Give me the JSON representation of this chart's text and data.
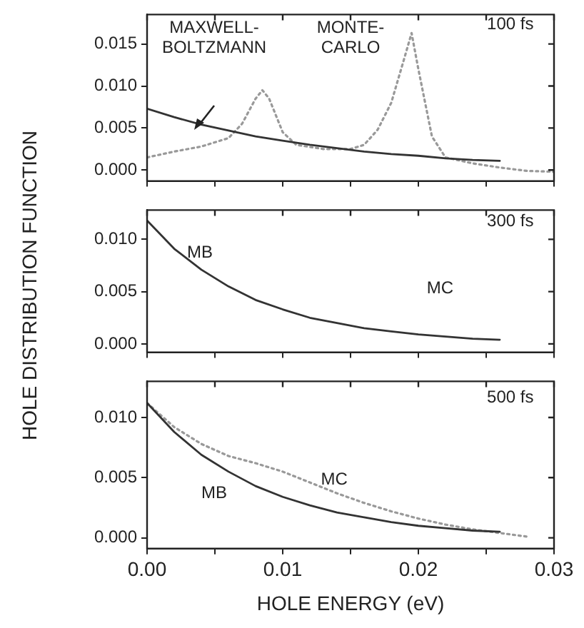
{
  "chart_data": [
    {
      "type": "line",
      "xlim": [
        0,
        0.03
      ],
      "ylim": [
        -0.0013,
        0.0185
      ],
      "tick_labels": "y",
      "grid": false,
      "marker": "none",
      "xticks": [
        {
          "value": 0,
          "label": null
        },
        {
          "value": 0.005,
          "label": null
        },
        {
          "value": 0.01,
          "label": null
        },
        {
          "value": 0.015,
          "label": null
        },
        {
          "value": 0.02,
          "label": null
        },
        {
          "value": 0.025,
          "label": null
        },
        {
          "value": 0.03,
          "label": null
        }
      ],
      "yticks": [
        {
          "value": 0,
          "label": "0.000"
        },
        {
          "value": 0.005,
          "label": "0.005"
        },
        {
          "value": 0.01,
          "label": "0.010"
        },
        {
          "value": 0.015,
          "label": "0.015"
        }
      ],
      "series": [
        {
          "color": "#333333",
          "line_style": "solid",
          "x": [
            0,
            0.002,
            0.004,
            0.006,
            0.008,
            0.01,
            0.012,
            0.014,
            0.016,
            0.018,
            0.02,
            0.022,
            0.024,
            0.026
          ],
          "values": [
            0.0073,
            0.0063,
            0.0054,
            0.0047,
            0.004,
            0.0035,
            0.003,
            0.0026,
            0.0022,
            0.0019,
            0.0017,
            0.0014,
            0.0012,
            0.0011
          ]
        },
        {
          "color": "#999999",
          "line_style": "dotted",
          "x": [
            0,
            0.002,
            0.004,
            0.006,
            0.007,
            0.008,
            0.0085,
            0.009,
            0.01,
            0.011,
            0.013,
            0.015,
            0.016,
            0.017,
            0.018,
            0.019,
            0.0195,
            0.02,
            0.021,
            0.022,
            0.024,
            0.026,
            0.028,
            0.03
          ],
          "values": [
            0.0015,
            0.0022,
            0.0028,
            0.0038,
            0.0055,
            0.0085,
            0.0095,
            0.0085,
            0.0045,
            0.003,
            0.0025,
            0.0025,
            0.003,
            0.0048,
            0.008,
            0.0135,
            0.0163,
            0.012,
            0.004,
            0.0015,
            0.0008,
            0.0003,
            -0.0001,
            -0.0002
          ]
        }
      ],
      "annotations": [
        "100 fs",
        "MAXWELL-\nBOLTZMANN",
        "MONTE-\nCARLO"
      ]
    },
    {
      "type": "line",
      "xlim": [
        0,
        0.03
      ],
      "ylim": [
        -0.0008,
        0.0128
      ],
      "tick_labels": "y",
      "grid": false,
      "marker": "none",
      "ylabel": "HOLE DISTRIBUTION FUNCTION",
      "xticks": [
        {
          "value": 0,
          "label": null
        },
        {
          "value": 0.005,
          "label": null
        },
        {
          "value": 0.01,
          "label": null
        },
        {
          "value": 0.015,
          "label": null
        },
        {
          "value": 0.02,
          "label": null
        },
        {
          "value": 0.025,
          "label": null
        },
        {
          "value": 0.03,
          "label": null
        }
      ],
      "yticks": [
        {
          "value": 0,
          "label": "0.000"
        },
        {
          "value": 0.005,
          "label": "0.005"
        },
        {
          "value": 0.01,
          "label": "0.010"
        }
      ],
      "series": [
        {
          "color": "#333333",
          "line_style": "solid",
          "x": [
            0,
            0.002,
            0.004,
            0.006,
            0.008,
            0.01,
            0.012,
            0.014,
            0.016,
            0.018,
            0.02,
            0.022,
            0.024,
            0.026
          ],
          "values": [
            0.0118,
            0.0091,
            0.0071,
            0.0055,
            0.0042,
            0.0033,
            0.0025,
            0.002,
            0.0015,
            0.0012,
            0.0009,
            0.0007,
            0.0005,
            0.0004
          ]
        }
      ],
      "annotations": [
        "300 fs",
        "MB",
        "MC"
      ]
    },
    {
      "type": "line",
      "xlim": [
        0,
        0.03
      ],
      "ylim": [
        -0.0009,
        0.013
      ],
      "grid": false,
      "marker": "none",
      "xlabel": "HOLE ENERGY (eV)",
      "xticks": [
        {
          "value": 0,
          "label": "0.00"
        },
        {
          "value": 0.005,
          "label": null
        },
        {
          "value": 0.01,
          "label": "0.01"
        },
        {
          "value": 0.015,
          "label": null
        },
        {
          "value": 0.02,
          "label": "0.02"
        },
        {
          "value": 0.025,
          "label": null
        },
        {
          "value": 0.03,
          "label": "0.03"
        }
      ],
      "yticks": [
        {
          "value": 0,
          "label": "0.000"
        },
        {
          "value": 0.005,
          "label": "0.005"
        },
        {
          "value": 0.01,
          "label": "0.010"
        }
      ],
      "series": [
        {
          "color": "#333333",
          "line_style": "solid",
          "x": [
            0,
            0.002,
            0.004,
            0.006,
            0.008,
            0.01,
            0.012,
            0.014,
            0.016,
            0.018,
            0.02,
            0.022,
            0.024,
            0.026
          ],
          "values": [
            0.0112,
            0.0088,
            0.0069,
            0.0055,
            0.0043,
            0.0034,
            0.0027,
            0.0021,
            0.0017,
            0.0013,
            0.001,
            0.0008,
            0.0006,
            0.0005
          ]
        },
        {
          "color": "#999999",
          "line_style": "dotted",
          "x": [
            0,
            0.002,
            0.004,
            0.006,
            0.008,
            0.01,
            0.012,
            0.014,
            0.016,
            0.018,
            0.02,
            0.022,
            0.024,
            0.026,
            0.028
          ],
          "values": [
            0.0112,
            0.0092,
            0.0078,
            0.0068,
            0.0062,
            0.0055,
            0.0046,
            0.0037,
            0.0029,
            0.0022,
            0.0016,
            0.0011,
            0.0007,
            0.0004,
            0.0001
          ]
        }
      ],
      "annotations": [
        "500 fs",
        "MB",
        "MC"
      ]
    }
  ]
}
